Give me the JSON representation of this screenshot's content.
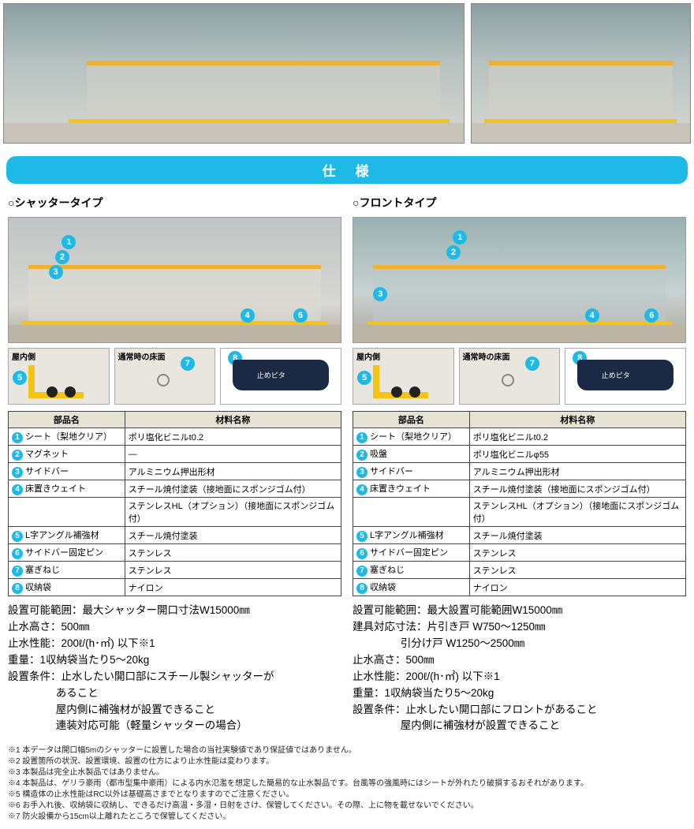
{
  "header": "仕　様",
  "variants": {
    "shutter": {
      "title": "○シャッタータイプ",
      "detail_labels": {
        "indoor": "屋内側",
        "floor": "通常時の床面"
      },
      "bag_label": "止めピタ",
      "callouts_main": [
        "1",
        "2",
        "3",
        "4",
        "6"
      ],
      "callouts_detail": [
        "5",
        "7",
        "8"
      ],
      "table": {
        "headers": [
          "部品名",
          "材料名称"
        ],
        "rows": [
          {
            "n": "1",
            "part": "シート（梨地クリア）",
            "mat": "ポリ塩化ビニルt0.2"
          },
          {
            "n": "2",
            "part": "マグネット",
            "mat": "—"
          },
          {
            "n": "3",
            "part": "サイドバー",
            "mat": "アルミニウム押出形材"
          },
          {
            "n": "4",
            "part": "床置きウェイト",
            "mat": "スチール焼付塗装（接地面にスポンジゴム付）"
          },
          {
            "n": "",
            "part": "",
            "mat": "ステンレスHL（オプション）（接地面にスポンジゴム付）"
          },
          {
            "n": "5",
            "part": "L字アングル補強材",
            "mat": "スチール焼付塗装"
          },
          {
            "n": "6",
            "part": "サイドバー固定ピン",
            "mat": "ステンレス"
          },
          {
            "n": "7",
            "part": "塞ぎねじ",
            "mat": "ステンレス"
          },
          {
            "n": "8",
            "part": "収納袋",
            "mat": "ナイロン"
          }
        ]
      },
      "specs": [
        "設置可能範囲：最大シャッター開口寸法W15000㎜",
        "止水高さ：500㎜",
        "止水性能：200ℓ/(h･㎡) 以下※1",
        "重量：1収納袋当たり5～20kg",
        "設置条件：止水したい開口部にスチール製シャッターが",
        "あること",
        "屋内側に補強材が設置できること",
        "連装対応可能（軽量シャッターの場合）"
      ]
    },
    "front": {
      "title": "○フロントタイプ",
      "detail_labels": {
        "indoor": "屋内側",
        "floor": "通常時の床面"
      },
      "bag_label": "止めピタ",
      "callouts_main": [
        "1",
        "2",
        "3",
        "4",
        "6"
      ],
      "callouts_detail": [
        "5",
        "7",
        "8"
      ],
      "table": {
        "headers": [
          "部品名",
          "材料名称"
        ],
        "rows": [
          {
            "n": "1",
            "part": "シート（梨地クリア）",
            "mat": "ポリ塩化ビニルt0.2"
          },
          {
            "n": "2",
            "part": "吸盤",
            "mat": "ポリ塩化ビニルφ55"
          },
          {
            "n": "3",
            "part": "サイドバー",
            "mat": "アルミニウム押出形材"
          },
          {
            "n": "4",
            "part": "床置きウェイト",
            "mat": "スチール焼付塗装（接地面にスポンジゴム付）"
          },
          {
            "n": "",
            "part": "",
            "mat": "ステンレスHL（オプション）（接地面にスポンジゴム付）"
          },
          {
            "n": "5",
            "part": "L字アングル補強材",
            "mat": "スチール焼付塗装"
          },
          {
            "n": "6",
            "part": "サイドバー固定ピン",
            "mat": "ステンレス"
          },
          {
            "n": "7",
            "part": "塞ぎねじ",
            "mat": "ステンレス"
          },
          {
            "n": "8",
            "part": "収納袋",
            "mat": "ナイロン"
          }
        ]
      },
      "specs": [
        "設置可能範囲：最大設置可能範囲W15000㎜",
        "建具対応寸法：片引き戸 W750～1250㎜",
        "引分け戸 W1250～2500㎜",
        "止水高さ：500㎜",
        "止水性能：200ℓ/(h･㎡) 以下※1",
        "重量：1収納袋当たり5～20kg",
        "設置条件：止水したい開口部にフロントがあること",
        "屋内側に補強材が設置できること"
      ]
    }
  },
  "notes": [
    "※1 本データは開口幅5mのシャッターに設置した場合の当社実験値であり保証値ではありません。",
    "※2 設置箇所の状況、設置環境、設置の仕方により止水性能は変わります。",
    "※3 本製品は完全止水製品ではありません。",
    "※4 本製品は、ゲリラ豪雨（都市型集中豪雨）による内水氾濫を想定した簡易的な止水製品です。台風等の強風時にはシートが外れたり破損するおそれがあります。",
    "※5 構造体の止水性能はRC以外は基礎高さまでとなりますのでご注意ください。",
    "※6 お手入れ後、収納袋に収納し、できるだけ高温・多湿・日射をさけ、保管してください。その際、上に物を載せないでください。",
    "※7 防火設備から15cm以上離れたところで保管してください。"
  ],
  "colors": {
    "accent": "#1fb9e8",
    "yellow": "#f5c314",
    "navy": "#1b2a44",
    "table_header": "#e6e2d4"
  }
}
